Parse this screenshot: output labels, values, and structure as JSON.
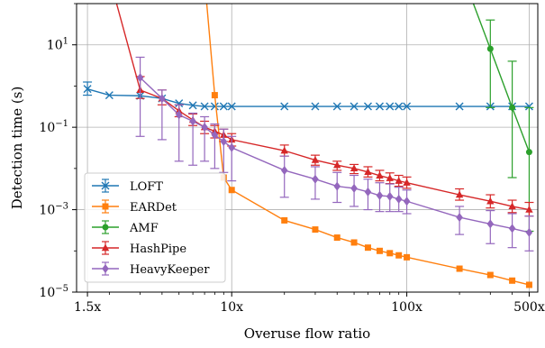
{
  "chart_data": {
    "type": "line",
    "xlabel": "Overuse flow ratio",
    "ylabel": "Detection time (s)",
    "xscale": "log",
    "yscale": "log",
    "xlim": [
      1.3,
      560
    ],
    "ylim": [
      1e-05,
      100
    ],
    "x_ticks": [
      {
        "value": 1.5,
        "label": "1.5x"
      },
      {
        "value": 10,
        "label": "10x"
      },
      {
        "value": 100,
        "label": "100x"
      },
      {
        "value": 500,
        "label": "500x"
      }
    ],
    "y_ticks": [
      {
        "value": 1e-05,
        "base": "10",
        "exp": "−5"
      },
      {
        "value": 0.001,
        "base": "10",
        "exp": "−3"
      },
      {
        "value": 0.1,
        "base": "10",
        "exp": "−1"
      },
      {
        "value": 10,
        "base": "10",
        "exp": "1"
      }
    ],
    "grid": true,
    "legend_position": "bottom-left",
    "series": [
      {
        "name": "LOFT",
        "color": "#1f77b4",
        "marker": "x",
        "points": [
          {
            "x": 1.5,
            "y": 0.85,
            "lo": 0.6,
            "hi": 1.25
          },
          {
            "x": 2,
            "y": 0.6
          },
          {
            "x": 3,
            "y": 0.58
          },
          {
            "x": 4,
            "y": 0.5
          },
          {
            "x": 5,
            "y": 0.38
          },
          {
            "x": 6,
            "y": 0.34
          },
          {
            "x": 7,
            "y": 0.32
          },
          {
            "x": 8,
            "y": 0.32
          },
          {
            "x": 9,
            "y": 0.32
          },
          {
            "x": 10,
            "y": 0.32
          },
          {
            "x": 20,
            "y": 0.32
          },
          {
            "x": 30,
            "y": 0.32
          },
          {
            "x": 40,
            "y": 0.32
          },
          {
            "x": 50,
            "y": 0.32
          },
          {
            "x": 60,
            "y": 0.32
          },
          {
            "x": 70,
            "y": 0.32
          },
          {
            "x": 80,
            "y": 0.32
          },
          {
            "x": 90,
            "y": 0.32
          },
          {
            "x": 100,
            "y": 0.32
          },
          {
            "x": 200,
            "y": 0.32
          },
          {
            "x": 300,
            "y": 0.32
          },
          {
            "x": 400,
            "y": 0.32
          },
          {
            "x": 500,
            "y": 0.32
          }
        ]
      },
      {
        "name": "EARDet",
        "color": "#ff7f0e",
        "marker": "square",
        "points": [
          {
            "x": 7.2,
            "y": 100
          },
          {
            "x": 8,
            "y": 0.6
          },
          {
            "x": 9,
            "y": 0.006
          },
          {
            "x": 10,
            "y": 0.003
          },
          {
            "x": 20,
            "y": 0.00055
          },
          {
            "x": 30,
            "y": 0.00033
          },
          {
            "x": 40,
            "y": 0.00021
          },
          {
            "x": 50,
            "y": 0.00016
          },
          {
            "x": 60,
            "y": 0.00012
          },
          {
            "x": 70,
            "y": 0.0001
          },
          {
            "x": 80,
            "y": 8.8e-05
          },
          {
            "x": 90,
            "y": 7.8e-05
          },
          {
            "x": 100,
            "y": 7e-05
          },
          {
            "x": 200,
            "y": 3.7e-05
          },
          {
            "x": 300,
            "y": 2.6e-05
          },
          {
            "x": 400,
            "y": 1.9e-05
          },
          {
            "x": 500,
            "y": 1.5e-05
          }
        ]
      },
      {
        "name": "AMF",
        "color": "#2ca02c",
        "marker": "circle",
        "points": [
          {
            "x": 240,
            "y": 100
          },
          {
            "x": 300,
            "y": 8,
            "lo": 0.3,
            "hi": 40
          },
          {
            "x": 400,
            "y": 0.3,
            "lo": 0.006,
            "hi": 4
          },
          {
            "x": 500,
            "y": 0.025,
            "lo": 0.0003,
            "hi": 0.3
          }
        ]
      },
      {
        "name": "HashPipe",
        "color": "#d62728",
        "marker": "triangle",
        "points": [
          {
            "x": 2.2,
            "y": 100
          },
          {
            "x": 3,
            "y": 0.8,
            "lo": 0.5,
            "hi": 1.7
          },
          {
            "x": 4,
            "y": 0.5,
            "lo": 0.35,
            "hi": 0.8
          },
          {
            "x": 5,
            "y": 0.25,
            "lo": 0.18,
            "hi": 0.35
          },
          {
            "x": 6,
            "y": 0.15,
            "lo": 0.11,
            "hi": 0.21
          },
          {
            "x": 7,
            "y": 0.1,
            "lo": 0.07,
            "hi": 0.14
          },
          {
            "x": 8,
            "y": 0.08,
            "lo": 0.055,
            "hi": 0.11
          },
          {
            "x": 9,
            "y": 0.065,
            "lo": 0.045,
            "hi": 0.09
          },
          {
            "x": 10,
            "y": 0.05,
            "lo": 0.035,
            "hi": 0.07
          },
          {
            "x": 20,
            "y": 0.027,
            "lo": 0.02,
            "hi": 0.037
          },
          {
            "x": 30,
            "y": 0.016,
            "lo": 0.012,
            "hi": 0.021
          },
          {
            "x": 40,
            "y": 0.012,
            "lo": 0.009,
            "hi": 0.015
          },
          {
            "x": 50,
            "y": 0.01,
            "lo": 0.0075,
            "hi": 0.0125
          },
          {
            "x": 60,
            "y": 0.0082,
            "lo": 0.0062,
            "hi": 0.011
          },
          {
            "x": 70,
            "y": 0.0067,
            "lo": 0.005,
            "hi": 0.009
          },
          {
            "x": 80,
            "y": 0.0058,
            "lo": 0.0043,
            "hi": 0.0078
          },
          {
            "x": 90,
            "y": 0.005,
            "lo": 0.0037,
            "hi": 0.0068
          },
          {
            "x": 100,
            "y": 0.0045,
            "lo": 0.0033,
            "hi": 0.0062
          },
          {
            "x": 200,
            "y": 0.0023,
            "lo": 0.0017,
            "hi": 0.0032
          },
          {
            "x": 300,
            "y": 0.0016,
            "lo": 0.0011,
            "hi": 0.0023
          },
          {
            "x": 400,
            "y": 0.0012,
            "lo": 0.00085,
            "hi": 0.0017
          },
          {
            "x": 500,
            "y": 0.001,
            "lo": 0.0007,
            "hi": 0.0015
          }
        ]
      },
      {
        "name": "HeavyKeeper",
        "color": "#9467bd",
        "marker": "diamond",
        "points": [
          {
            "x": 3,
            "y": 1.6,
            "lo": 0.06,
            "hi": 5
          },
          {
            "x": 4,
            "y": 0.5,
            "lo": 0.05,
            "hi": 0.8
          },
          {
            "x": 5,
            "y": 0.2,
            "lo": 0.015,
            "hi": 0.35
          },
          {
            "x": 6,
            "y": 0.14,
            "lo": 0.012,
            "hi": 0.22
          },
          {
            "x": 7,
            "y": 0.1,
            "lo": 0.015,
            "hi": 0.18
          },
          {
            "x": 8,
            "y": 0.065,
            "lo": 0.01,
            "hi": 0.12
          },
          {
            "x": 9,
            "y": 0.045,
            "lo": 0.008,
            "hi": 0.09
          },
          {
            "x": 10,
            "y": 0.032,
            "lo": 0.005,
            "hi": 0.06
          },
          {
            "x": 20,
            "y": 0.009,
            "lo": 0.002,
            "hi": 0.02
          },
          {
            "x": 30,
            "y": 0.0055,
            "lo": 0.0018,
            "hi": 0.011
          },
          {
            "x": 40,
            "y": 0.0037,
            "lo": 0.0015,
            "hi": 0.008
          },
          {
            "x": 50,
            "y": 0.0033,
            "lo": 0.0012,
            "hi": 0.0068
          },
          {
            "x": 60,
            "y": 0.0027,
            "lo": 0.001,
            "hi": 0.0055
          },
          {
            "x": 70,
            "y": 0.0022,
            "lo": 0.0009,
            "hi": 0.0045
          },
          {
            "x": 80,
            "y": 0.0021,
            "lo": 0.0009,
            "hi": 0.0042
          },
          {
            "x": 90,
            "y": 0.0018,
            "lo": 0.0009,
            "hi": 0.0035
          },
          {
            "x": 100,
            "y": 0.0016,
            "lo": 0.0008,
            "hi": 0.003
          },
          {
            "x": 200,
            "y": 0.00065,
            "lo": 0.00025,
            "hi": 0.0012
          },
          {
            "x": 300,
            "y": 0.00045,
            "lo": 0.00015,
            "hi": 0.00095
          },
          {
            "x": 400,
            "y": 0.00035,
            "lo": 0.00012,
            "hi": 0.0008
          },
          {
            "x": 500,
            "y": 0.00028,
            "lo": 0.0001,
            "hi": 0.0007
          }
        ]
      }
    ]
  }
}
